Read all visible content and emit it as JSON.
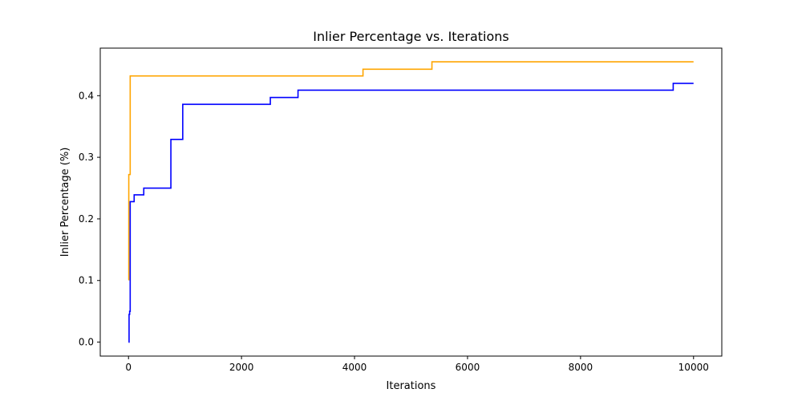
{
  "chart_data": {
    "type": "line",
    "title": "Inlier Percentage vs. Iterations",
    "xlabel": "Iterations",
    "ylabel": "Inlier Percentage (%)",
    "xlim": [
      -500,
      10500
    ],
    "ylim": [
      -0.0227,
      0.4772
    ],
    "xticks": [
      0,
      2000,
      4000,
      6000,
      8000,
      10000
    ],
    "yticks": [
      0.0,
      0.1,
      0.2,
      0.3,
      0.4
    ],
    "xtick_labels": [
      "0",
      "2000",
      "4000",
      "6000",
      "8000",
      "10000"
    ],
    "ytick_labels": [
      "0.0",
      "0.1",
      "0.2",
      "0.3",
      "0.4"
    ],
    "grid": false,
    "series": [
      {
        "color": "#ffa500",
        "step": "post",
        "x": [
          0,
          5,
          30,
          4150,
          5370,
          10000
        ],
        "y": [
          0.101,
          0.272,
          0.432,
          0.443,
          0.455,
          0.455
        ]
      },
      {
        "color": "#0000ff",
        "step": "post",
        "x": [
          0,
          10,
          20,
          30,
          50,
          100,
          270,
          750,
          960,
          2510,
          3000,
          9640,
          10000
        ],
        "y": [
          0.0,
          0.045,
          0.05,
          0.228,
          0.228,
          0.239,
          0.25,
          0.329,
          0.386,
          0.397,
          0.409,
          0.42,
          0.42
        ]
      }
    ]
  }
}
